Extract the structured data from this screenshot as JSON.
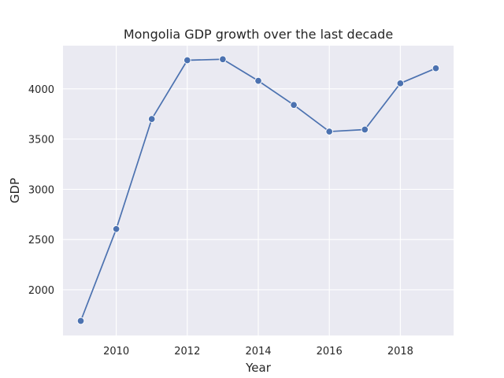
{
  "chart_data": {
    "type": "line",
    "title": "Mongolia GDP growth over the last decade",
    "xlabel": "Year",
    "ylabel": "GDP",
    "x": [
      2009,
      2010,
      2011,
      2012,
      2013,
      2014,
      2015,
      2016,
      2017,
      2018,
      2019
    ],
    "series": [
      {
        "values": [
          1690,
          2605,
          3700,
          4285,
          4295,
          4080,
          3840,
          3575,
          3595,
          4055,
          4205
        ]
      }
    ],
    "xlim": [
      2008.5,
      2019.5
    ],
    "ylim": [
      1545,
      4430
    ],
    "xticks": [
      "2010",
      "2012",
      "2014",
      "2016",
      "2018"
    ],
    "yticks": [
      "2000",
      "2500",
      "3000",
      "3500",
      "4000"
    ],
    "grid": true,
    "colors": {
      "background": "#eaeaf2",
      "grid": "#ffffff",
      "line": "#4c72b0",
      "marker_edge": "#ffffff"
    }
  }
}
